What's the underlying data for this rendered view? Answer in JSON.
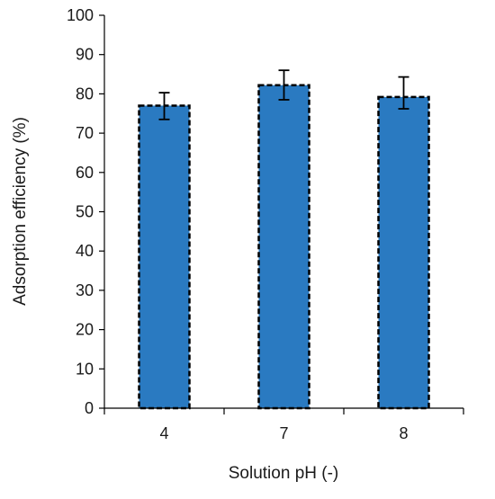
{
  "chart_data": {
    "type": "bar",
    "categories": [
      "4",
      "7",
      "8"
    ],
    "values": [
      77,
      82.2,
      79.2
    ],
    "error_low": [
      73.5,
      78.5,
      76.2
    ],
    "error_high": [
      80.3,
      86,
      84.3
    ],
    "xlabel": "Solution pH (-)",
    "ylabel": "Adsorption efficiency (%)",
    "ylim": [
      0,
      100
    ],
    "yticks": [
      0,
      10,
      20,
      30,
      40,
      50,
      60,
      70,
      80,
      90,
      100
    ],
    "grid": false,
    "legend": "none",
    "bar_style": "dashed-outline",
    "colors": {
      "bar_fill": "#2a7ac1",
      "bar_outline": "#000000",
      "axis": "#000000"
    }
  }
}
